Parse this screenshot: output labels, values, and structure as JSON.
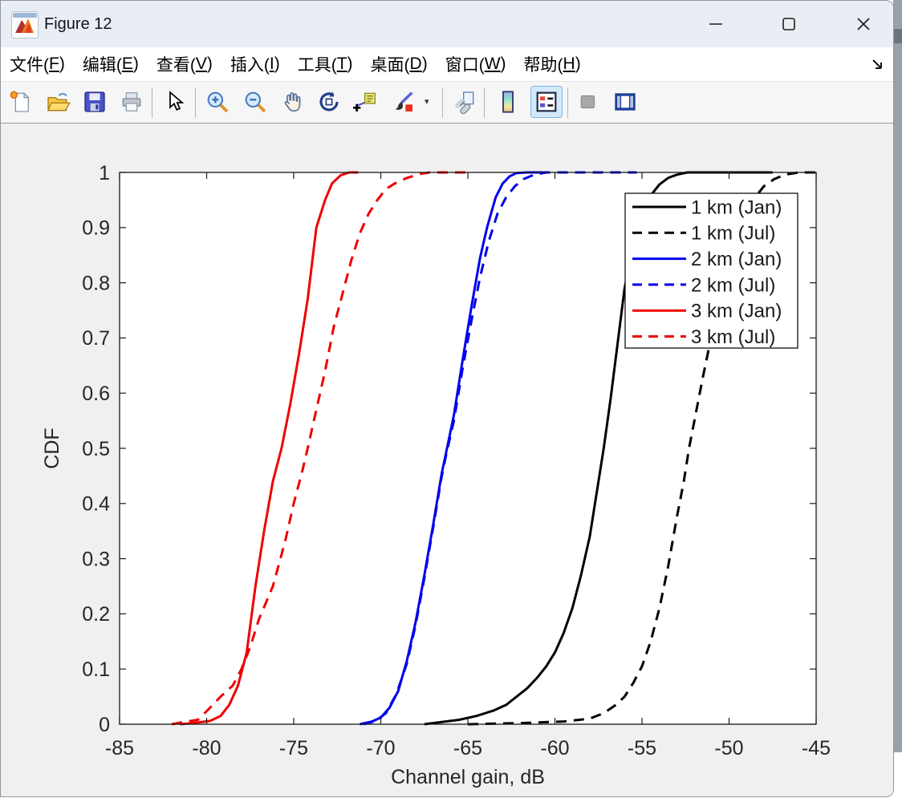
{
  "window": {
    "title": "Figure 12",
    "controls": [
      {
        "name": "minimize-button"
      },
      {
        "name": "maximize-button"
      },
      {
        "name": "close-button"
      }
    ]
  },
  "menu": {
    "items": [
      {
        "label": "文件",
        "key": "F"
      },
      {
        "label": "编辑",
        "key": "E"
      },
      {
        "label": "查看",
        "key": "V"
      },
      {
        "label": "插入",
        "key": "I"
      },
      {
        "label": "工具",
        "key": "T"
      },
      {
        "label": "桌面",
        "key": "D"
      },
      {
        "label": "窗口",
        "key": "W"
      },
      {
        "label": "帮助",
        "key": "H"
      }
    ],
    "dock_icon": "dock-figure-arrow-icon"
  },
  "toolbar": {
    "icons": [
      "new-figure-icon",
      "open-file-icon",
      "save-figure-icon",
      "print-figure-icon",
      "pointer-icon",
      "zoom-in-icon",
      "zoom-out-icon",
      "pan-icon",
      "rotate-3d-icon",
      "data-cursor-icon",
      "brush-data-icon",
      "link-plot-icon",
      "insert-colorbar-icon",
      "insert-legend-icon",
      "hide-plot-tools-icon",
      "show-plot-tools-icon"
    ],
    "active_button": "insert-legend",
    "disabled_button": "hide-plot-tools"
  },
  "chart_data": {
    "type": "line",
    "title": "",
    "xlabel": "Channel gain, dB",
    "ylabel": "CDF",
    "xlim": [
      -85,
      -45
    ],
    "ylim": [
      0,
      1
    ],
    "xticks": [
      -85,
      -80,
      -75,
      -70,
      -65,
      -60,
      -55,
      -50,
      -45
    ],
    "yticks": [
      0,
      0.1,
      0.2,
      0.3,
      0.4,
      0.5,
      0.6,
      0.7,
      0.8,
      0.9,
      1
    ],
    "grid": false,
    "legend_position": "northeast",
    "axis_color": "#1a1a1a",
    "tick_label_color": "#262626",
    "series": [
      {
        "name": "1 km (Jan)",
        "color": "#000000",
        "style": "solid",
        "points": [
          [
            -67.5,
            0
          ],
          [
            -66.5,
            0.004
          ],
          [
            -65.5,
            0.008
          ],
          [
            -64.5,
            0.015
          ],
          [
            -63.5,
            0.025
          ],
          [
            -62.8,
            0.035
          ],
          [
            -62.2,
            0.05
          ],
          [
            -61.6,
            0.065
          ],
          [
            -61.0,
            0.085
          ],
          [
            -60.5,
            0.105
          ],
          [
            -60.0,
            0.13
          ],
          [
            -59.5,
            0.165
          ],
          [
            -59.0,
            0.21
          ],
          [
            -58.5,
            0.27
          ],
          [
            -58.0,
            0.34
          ],
          [
            -57.6,
            0.42
          ],
          [
            -57.2,
            0.5
          ],
          [
            -56.8,
            0.59
          ],
          [
            -56.4,
            0.69
          ],
          [
            -56.0,
            0.79
          ],
          [
            -55.6,
            0.855
          ],
          [
            -55.2,
            0.9
          ],
          [
            -54.8,
            0.935
          ],
          [
            -54.4,
            0.962
          ],
          [
            -54.0,
            0.978
          ],
          [
            -53.5,
            0.99
          ],
          [
            -53.0,
            0.996
          ],
          [
            -52.4,
            1.0
          ],
          [
            -47.5,
            1.0
          ]
        ]
      },
      {
        "name": "1 km (Jul)",
        "color": "#000000",
        "style": "dashed",
        "points": [
          [
            -65.0,
            0
          ],
          [
            -62.0,
            0.002
          ],
          [
            -59.5,
            0.005
          ],
          [
            -58.0,
            0.01
          ],
          [
            -57.2,
            0.02
          ],
          [
            -56.5,
            0.035
          ],
          [
            -56.0,
            0.05
          ],
          [
            -55.5,
            0.075
          ],
          [
            -55.0,
            0.105
          ],
          [
            -54.5,
            0.15
          ],
          [
            -54.0,
            0.21
          ],
          [
            -53.5,
            0.285
          ],
          [
            -53.0,
            0.375
          ],
          [
            -52.6,
            0.44
          ],
          [
            -52.3,
            0.5
          ],
          [
            -51.9,
            0.565
          ],
          [
            -51.5,
            0.63
          ],
          [
            -51.0,
            0.705
          ],
          [
            -50.5,
            0.775
          ],
          [
            -50.0,
            0.84
          ],
          [
            -49.5,
            0.89
          ],
          [
            -49.0,
            0.93
          ],
          [
            -48.5,
            0.955
          ],
          [
            -48.0,
            0.975
          ],
          [
            -47.4,
            0.988
          ],
          [
            -46.8,
            0.996
          ],
          [
            -46.0,
            1.0
          ],
          [
            -45.0,
            1.0
          ]
        ]
      },
      {
        "name": "2 km (Jan)",
        "color": "#0000ee",
        "style": "solid",
        "points": [
          [
            -71.2,
            0
          ],
          [
            -70.5,
            0.005
          ],
          [
            -70.0,
            0.012
          ],
          [
            -69.5,
            0.03
          ],
          [
            -69.0,
            0.06
          ],
          [
            -68.5,
            0.115
          ],
          [
            -68.0,
            0.185
          ],
          [
            -67.5,
            0.27
          ],
          [
            -67.0,
            0.36
          ],
          [
            -66.5,
            0.455
          ],
          [
            -66.2,
            0.5
          ],
          [
            -65.8,
            0.56
          ],
          [
            -65.3,
            0.66
          ],
          [
            -64.8,
            0.755
          ],
          [
            -64.3,
            0.845
          ],
          [
            -63.9,
            0.9
          ],
          [
            -63.4,
            0.955
          ],
          [
            -63.0,
            0.98
          ],
          [
            -62.6,
            0.993
          ],
          [
            -62.2,
            0.999
          ],
          [
            -61.6,
            1.0
          ],
          [
            -60.3,
            1.0
          ]
        ]
      },
      {
        "name": "2 km (Jul)",
        "color": "#0000ee",
        "style": "dashed",
        "points": [
          [
            -71.0,
            0
          ],
          [
            -70.3,
            0.006
          ],
          [
            -69.7,
            0.02
          ],
          [
            -69.1,
            0.055
          ],
          [
            -68.5,
            0.11
          ],
          [
            -68.0,
            0.18
          ],
          [
            -67.5,
            0.265
          ],
          [
            -67.0,
            0.355
          ],
          [
            -66.5,
            0.45
          ],
          [
            -66.2,
            0.495
          ],
          [
            -65.8,
            0.55
          ],
          [
            -65.3,
            0.645
          ],
          [
            -64.8,
            0.73
          ],
          [
            -64.3,
            0.81
          ],
          [
            -63.8,
            0.875
          ],
          [
            -63.3,
            0.925
          ],
          [
            -62.8,
            0.955
          ],
          [
            -62.3,
            0.975
          ],
          [
            -61.8,
            0.988
          ],
          [
            -61.2,
            0.996
          ],
          [
            -60.5,
            1.0
          ],
          [
            -55.3,
            1.0
          ]
        ]
      },
      {
        "name": "3 km (Jan)",
        "color": "#f00000",
        "style": "solid",
        "points": [
          [
            -81.5,
            0
          ],
          [
            -80.5,
            0.003
          ],
          [
            -79.8,
            0.006
          ],
          [
            -79.2,
            0.015
          ],
          [
            -78.7,
            0.035
          ],
          [
            -78.2,
            0.07
          ],
          [
            -77.7,
            0.13
          ],
          [
            -77.2,
            0.25
          ],
          [
            -76.7,
            0.35
          ],
          [
            -76.2,
            0.44
          ],
          [
            -75.7,
            0.5
          ],
          [
            -75.2,
            0.58
          ],
          [
            -74.7,
            0.67
          ],
          [
            -74.2,
            0.77
          ],
          [
            -73.7,
            0.9
          ],
          [
            -73.2,
            0.95
          ],
          [
            -72.8,
            0.98
          ],
          [
            -72.3,
            0.995
          ],
          [
            -71.8,
            1.0
          ],
          [
            -71.3,
            1.0
          ]
        ]
      },
      {
        "name": "3 km (Jul)",
        "color": "#f00000",
        "style": "dashed",
        "points": [
          [
            -82.0,
            0
          ],
          [
            -81.3,
            0.004
          ],
          [
            -80.5,
            0.008
          ],
          [
            -79.8,
            0.03
          ],
          [
            -79.2,
            0.05
          ],
          [
            -78.5,
            0.07
          ],
          [
            -78.0,
            0.1
          ],
          [
            -77.5,
            0.14
          ],
          [
            -77.0,
            0.19
          ],
          [
            -76.2,
            0.25
          ],
          [
            -75.5,
            0.33
          ],
          [
            -75.0,
            0.4
          ],
          [
            -74.5,
            0.46
          ],
          [
            -74.2,
            0.5
          ],
          [
            -73.7,
            0.57
          ],
          [
            -73.2,
            0.64
          ],
          [
            -72.7,
            0.72
          ],
          [
            -72.2,
            0.78
          ],
          [
            -71.7,
            0.84
          ],
          [
            -71.2,
            0.89
          ],
          [
            -70.7,
            0.925
          ],
          [
            -70.2,
            0.95
          ],
          [
            -69.7,
            0.97
          ],
          [
            -69.2,
            0.98
          ],
          [
            -68.5,
            0.99
          ],
          [
            -67.8,
            0.997
          ],
          [
            -67.2,
            1.0
          ],
          [
            -65.0,
            1.0
          ]
        ]
      }
    ]
  }
}
